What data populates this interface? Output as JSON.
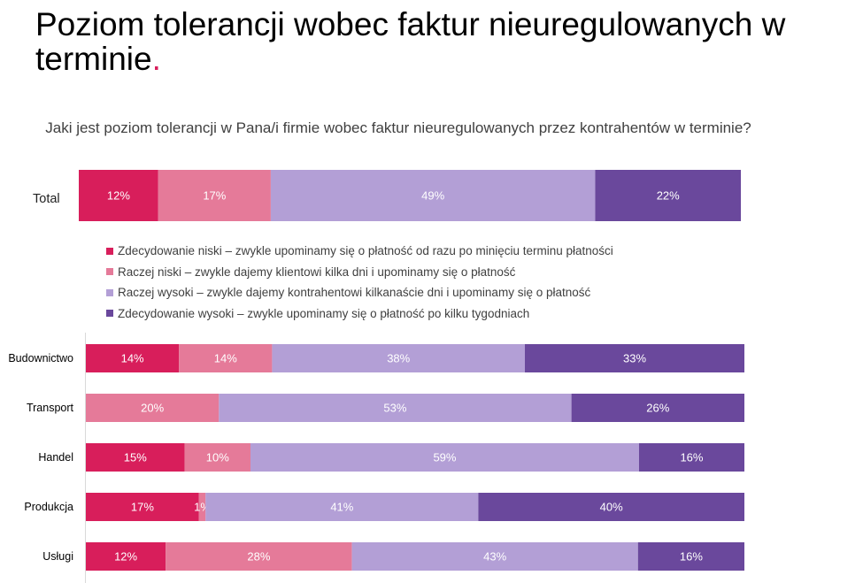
{
  "title": "Poziom tolerancji wobec faktur nieuregulowanych w terminie",
  "title_dot": ".",
  "colors": {
    "accent": "#d81e5b",
    "categories": [
      "#d81e5b",
      "#e57a99",
      "#b39fd6",
      "#6a489c"
    ]
  },
  "chart_data": [
    {
      "type": "bar",
      "orientation": "horizontal",
      "stacked": true,
      "normalized": true,
      "title": "Jaki jest poziom tolerancji w Pana/i firmie wobec faktur nieuregulowanych przez kontrahentów w terminie?",
      "categories": [
        "Total"
      ],
      "series": [
        {
          "name": "Zdecydowanie niski – zwykle upominamy się o płatność od razu po minięciu terminu płatności",
          "values": [
            12
          ],
          "labels": [
            "12%"
          ]
        },
        {
          "name": "Raczej niski – zwykle dajemy klientowi kilka dni i upominamy się o płatność",
          "values": [
            17
          ],
          "labels": [
            "17%"
          ]
        },
        {
          "name": "Raczej wysoki – zwykle dajemy kontrahentowi kilkanaście dni i upominamy się o płatność",
          "values": [
            49
          ],
          "labels": [
            "49%"
          ]
        },
        {
          "name": "Zdecydowanie wysoki – zwykle upominamy się o płatność po kilku tygodniach",
          "values": [
            22
          ],
          "labels": [
            "22%"
          ]
        }
      ],
      "legend": "below",
      "grid": false
    },
    {
      "type": "bar",
      "orientation": "horizontal",
      "stacked": true,
      "normalized": true,
      "categories": [
        "Budownictwo",
        "Transport",
        "Handel",
        "Produkcja",
        "Usługi"
      ],
      "series": [
        {
          "name": "Zdecydowanie niski – zwykle upominamy się o płatność od razu po minięciu terminu płatności",
          "values": [
            14,
            0,
            15,
            17,
            12
          ],
          "labels": [
            "14%",
            "",
            "15%",
            "17%",
            "12%"
          ]
        },
        {
          "name": "Raczej niski – zwykle dajemy klientowi kilka dni i upominamy się o płatność",
          "values": [
            14,
            20,
            10,
            1,
            28
          ],
          "labels": [
            "14%",
            "20%",
            "10%",
            "1%",
            "28%"
          ]
        },
        {
          "name": "Raczej wysoki – zwykle dajemy kontrahentowi kilkanaście dni i upominamy się o płatność",
          "values": [
            38,
            53,
            59,
            41,
            43
          ],
          "labels": [
            "38%",
            "53%",
            "59%",
            "41%",
            "43%"
          ]
        },
        {
          "name": "Zdecydowanie wysoki – zwykle upominamy się o płatność po kilku tygodniach",
          "values": [
            33,
            26,
            16,
            40,
            16
          ],
          "labels": [
            "33%",
            "26%",
            "16%",
            "40%",
            "16%"
          ]
        }
      ],
      "grid": false
    }
  ]
}
